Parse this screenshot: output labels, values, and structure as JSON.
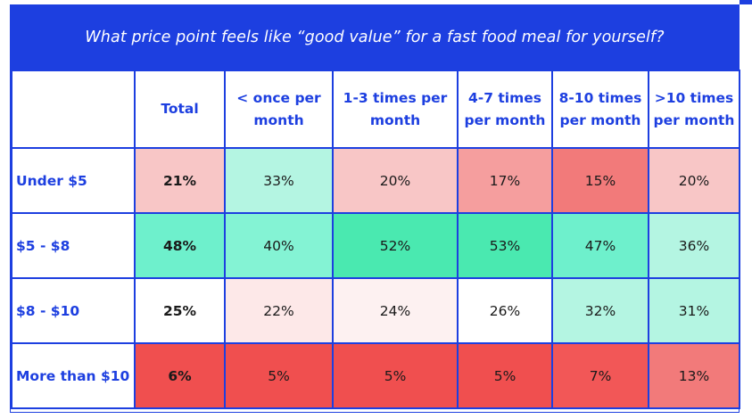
{
  "chart_data": {
    "type": "table",
    "title": "What price point feels like “good value” for a fast food meal for yourself?",
    "columns": [
      "Total",
      "< once per month",
      "1-3 times per month",
      "4-7 times per month",
      "8-10 times per month",
      ">10 times per month"
    ],
    "rows": [
      {
        "label": "Under $5",
        "values": [
          "21%",
          "33%",
          "20%",
          "17%",
          "15%",
          "20%"
        ],
        "colors": [
          "#f8c6c6",
          "#b4f5e2",
          "#f8c6c6",
          "#f59e9e",
          "#f27a7a",
          "#f8c6c6"
        ]
      },
      {
        "label": "$5 - $8",
        "values": [
          "48%",
          "40%",
          "52%",
          "53%",
          "47%",
          "36%"
        ],
        "colors": [
          "#6ef0cc",
          "#84f3d4",
          "#4ae9b0",
          "#4ae9b0",
          "#6ef0cc",
          "#b4f5e2"
        ]
      },
      {
        "label": "$8 - $10",
        "values": [
          "25%",
          "22%",
          "24%",
          "26%",
          "32%",
          "31%"
        ],
        "colors": [
          "#ffffff",
          "#fde8e8",
          "#fdf1f1",
          "#ffffff",
          "#b4f5e2",
          "#b4f5e2"
        ]
      },
      {
        "label": "More than $10",
        "values": [
          "6%",
          "5%",
          "5%",
          "5%",
          "7%",
          "13%"
        ],
        "colors": [
          "#f04f4f",
          "#f04f4f",
          "#f04f4f",
          "#f04f4f",
          "#f25757",
          "#f27a7a"
        ]
      }
    ]
  }
}
